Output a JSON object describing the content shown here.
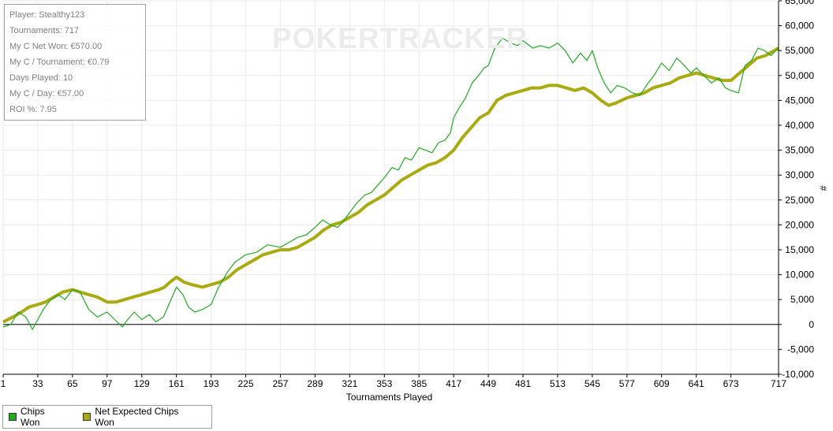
{
  "watermark": "POKERTRACKER",
  "stats": [
    "Player: Stealthy123",
    "Tournaments: 717",
    "My C Net Won: €570.00",
    "My C / Tournament: €0.79",
    "Days Played: 10",
    "My C / Day: €57.00",
    "ROI %: 7.95"
  ],
  "chart_data": {
    "type": "line",
    "xlabel": "Tournaments Played",
    "ylabel": "#",
    "xlim": [
      1,
      717
    ],
    "ylim": [
      -10000,
      65000
    ],
    "x_ticks": [
      1,
      33,
      65,
      97,
      129,
      161,
      193,
      225,
      257,
      289,
      321,
      353,
      385,
      417,
      449,
      481,
      513,
      545,
      577,
      609,
      641,
      673,
      717
    ],
    "y_ticks": [
      -10000,
      -5000,
      0,
      5000,
      10000,
      15000,
      20000,
      25000,
      30000,
      35000,
      40000,
      45000,
      50000,
      55000,
      60000,
      65000
    ],
    "y_tick_labels": [
      "-10,000",
      "-5,000",
      "0",
      "5,000",
      "10,000",
      "15,000",
      "20,000",
      "25,000",
      "30,000",
      "35,000",
      "40,000",
      "45,000",
      "50,000",
      "55,000",
      "60,000",
      "65,000"
    ],
    "grid": true,
    "legend_position": "bottom-left",
    "series": [
      {
        "name": "Chips Won",
        "color": "#22aa22",
        "x": [
          1,
          8,
          15,
          22,
          28,
          33,
          38,
          45,
          52,
          58,
          65,
          72,
          80,
          88,
          97,
          104,
          111,
          116,
          122,
          129,
          136,
          142,
          149,
          155,
          161,
          167,
          172,
          178,
          185,
          193,
          200,
          208,
          215,
          225,
          235,
          245,
          257,
          265,
          273,
          281,
          289,
          296,
          303,
          310,
          316,
          321,
          328,
          335,
          341,
          347,
          353,
          360,
          366,
          372,
          378,
          385,
          391,
          397,
          403,
          409,
          414,
          417,
          422,
          428,
          434,
          440,
          445,
          449,
          455,
          462,
          470,
          476,
          481,
          490,
          497,
          505,
          513,
          520,
          527,
          534,
          540,
          545,
          550,
          556,
          562,
          568,
          575,
          582,
          589,
          595,
          602,
          609,
          616,
          623,
          630,
          636,
          641,
          648,
          655,
          662,
          668,
          673,
          680,
          686,
          692,
          698,
          704,
          710,
          717
        ],
        "y": [
          -500,
          0,
          2500,
          1500,
          -1000,
          1000,
          3000,
          5000,
          6000,
          5000,
          7000,
          6500,
          3000,
          1500,
          2500,
          1000,
          -500,
          1000,
          2500,
          1000,
          2000,
          500,
          1500,
          4500,
          7500,
          6000,
          3500,
          2500,
          3000,
          4000,
          7500,
          10500,
          12500,
          14000,
          14500,
          16000,
          15500,
          16500,
          17500,
          18000,
          19500,
          21000,
          20000,
          19500,
          21000,
          22500,
          24500,
          26000,
          26500,
          28000,
          29500,
          31500,
          31000,
          33500,
          33000,
          35500,
          35000,
          34500,
          36500,
          37000,
          38500,
          41500,
          43500,
          45500,
          48500,
          50000,
          51500,
          52000,
          55500,
          57500,
          56500,
          56000,
          57000,
          55500,
          56000,
          55500,
          56500,
          55000,
          52500,
          54500,
          53000,
          55000,
          51500,
          48500,
          46500,
          48000,
          47500,
          46500,
          46000,
          48000,
          50000,
          52500,
          51000,
          53500,
          52000,
          50500,
          51500,
          50000,
          48500,
          49500,
          47500,
          47000,
          46500,
          52000,
          53000,
          55500,
          55000,
          54000,
          55500
        ]
      },
      {
        "name": "Net Expected Chips Won",
        "color": "#aaaa11",
        "x": [
          1,
          10,
          18,
          25,
          33,
          40,
          48,
          56,
          65,
          72,
          80,
          88,
          97,
          105,
          113,
          121,
          129,
          137,
          145,
          150,
          155,
          161,
          168,
          175,
          185,
          193,
          201,
          209,
          217,
          225,
          233,
          241,
          249,
          257,
          265,
          273,
          281,
          289,
          297,
          305,
          313,
          321,
          329,
          337,
          345,
          353,
          361,
          369,
          377,
          385,
          393,
          401,
          409,
          417,
          425,
          433,
          441,
          449,
          457,
          465,
          473,
          481,
          489,
          497,
          505,
          513,
          521,
          529,
          537,
          545,
          553,
          560,
          567,
          577,
          585,
          593,
          601,
          609,
          617,
          625,
          633,
          641,
          649,
          657,
          665,
          673,
          681,
          689,
          697,
          705,
          717
        ],
        "y": [
          500,
          1500,
          2500,
          3500,
          4000,
          4500,
          5500,
          6500,
          7000,
          6500,
          6000,
          5500,
          4500,
          4500,
          5000,
          5500,
          6000,
          6500,
          7000,
          7500,
          8500,
          9500,
          8500,
          8000,
          7500,
          8000,
          8500,
          9500,
          11000,
          12000,
          13000,
          14000,
          14500,
          15000,
          15000,
          15500,
          16500,
          17500,
          19000,
          20000,
          20500,
          21500,
          22500,
          24000,
          25000,
          26000,
          27500,
          29000,
          30000,
          31000,
          32000,
          32500,
          33500,
          35000,
          37500,
          39500,
          41500,
          42500,
          45000,
          46000,
          46500,
          47000,
          47500,
          47500,
          48000,
          48000,
          47500,
          47000,
          47500,
          46500,
          45000,
          44000,
          44500,
          45500,
          46000,
          46500,
          47500,
          48000,
          48500,
          49500,
          50000,
          50500,
          50000,
          49500,
          49000,
          49000,
          50500,
          52000,
          53500,
          54000,
          55500
        ]
      }
    ]
  }
}
